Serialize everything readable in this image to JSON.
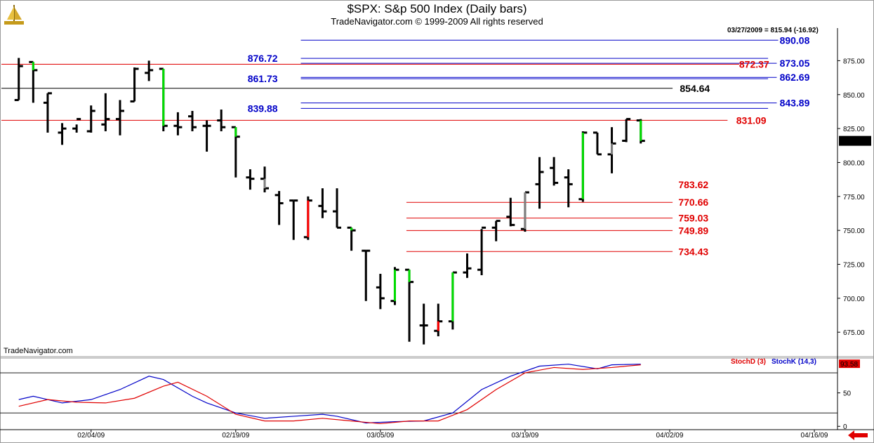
{
  "header": {
    "title": "$SPX:  S&p 500 Index  (Daily bars)",
    "subtitle": "TradeNavigator.com © 1999-2009 All rights reserved",
    "stamp": "03/27/2009 = 815.94 (-16.92)",
    "watermark": "TradeNavigator.com",
    "logo_icon": "sailboat-logo-icon",
    "scroll_icon": "scroll-left-arrow-icon"
  },
  "colors": {
    "bar": "#000000",
    "bar_gray": "#808080",
    "bar_green": "#00dd00",
    "bar_red": "#ff0000",
    "level_blue": "#0000c8",
    "level_red": "#e00000",
    "level_black": "#000000",
    "stoch_d": "#e00000",
    "stoch_k": "#0000c8"
  },
  "chart_data": {
    "type": "ohlc",
    "title": "$SPX:  S&p 500 Index  (Daily bars)",
    "price_axis": {
      "ylim": [
        657,
        899
      ],
      "ticks": [
        675,
        700,
        725,
        750,
        775,
        800,
        825,
        850,
        875
      ],
      "tick_labels": [
        "675.00",
        "700.00",
        "725.00",
        "750.00",
        "775.00",
        "800.00",
        "825.00",
        "850.00",
        "875.00"
      ],
      "last_price_label": "815.94"
    },
    "x_axis": {
      "bar_range": [
        -1.2,
        56.6
      ],
      "ticks": [
        5,
        15,
        25,
        35,
        45,
        55
      ],
      "tick_labels": [
        "02/04/09",
        "02/19/09",
        "03/05/09",
        "03/19/09",
        "04/02/09",
        "04/16/09"
      ]
    },
    "bars": [
      {
        "o": 846,
        "h": 877,
        "l": 846,
        "c": 871,
        "color": "black"
      },
      {
        "o": 874,
        "h": 874,
        "l": 844,
        "c": 868,
        "color": "green"
      },
      {
        "o": 844,
        "h": 851,
        "l": 822,
        "c": 851,
        "color": "black"
      },
      {
        "o": 822,
        "h": 829,
        "l": 813,
        "c": 825,
        "color": "black"
      },
      {
        "o": 825,
        "h": 828,
        "l": 822,
        "c": 832,
        "color": "black"
      },
      {
        "o": 823,
        "h": 842,
        "l": 822,
        "c": 838,
        "color": "black"
      },
      {
        "o": 828,
        "h": 851,
        "l": 823,
        "c": 832,
        "color": "black"
      },
      {
        "o": 832,
        "h": 846,
        "l": 820,
        "c": 838,
        "color": "black"
      },
      {
        "o": 845,
        "h": 870,
        "l": 845,
        "c": 869,
        "color": "black"
      },
      {
        "o": 866,
        "h": 875,
        "l": 860,
        "c": 868,
        "color": "black"
      },
      {
        "o": 869,
        "h": 869,
        "l": 823,
        "c": 827,
        "color": "green"
      },
      {
        "o": 827,
        "h": 837,
        "l": 820,
        "c": 826,
        "color": "black"
      },
      {
        "o": 834,
        "h": 838,
        "l": 823,
        "c": 826,
        "color": "black"
      },
      {
        "o": 827,
        "h": 831,
        "l": 808,
        "c": 827,
        "color": "black"
      },
      {
        "o": 831,
        "h": 839,
        "l": 823,
        "c": 826,
        "color": "black"
      },
      {
        "o": 826,
        "h": 826,
        "l": 789,
        "c": 819,
        "color": "green"
      },
      {
        "o": 789,
        "h": 795,
        "l": 780,
        "c": 788,
        "color": "black"
      },
      {
        "o": 788,
        "h": 797,
        "l": 778,
        "c": 781,
        "color": "gray"
      },
      {
        "o": 776,
        "h": 779,
        "l": 754,
        "c": 770,
        "color": "black"
      },
      {
        "o": 772,
        "h": 772,
        "l": 743,
        "c": 772,
        "color": "black"
      },
      {
        "o": 745,
        "h": 775,
        "l": 743,
        "c": 772,
        "color": "red"
      },
      {
        "o": 768,
        "h": 781,
        "l": 759,
        "c": 764,
        "color": "black"
      },
      {
        "o": 764,
        "h": 781,
        "l": 752,
        "c": 752,
        "color": "black"
      },
      {
        "o": 752,
        "h": 752,
        "l": 735,
        "c": 750,
        "color": "green"
      },
      {
        "o": 735,
        "h": 735,
        "l": 698,
        "c": 735,
        "color": "green"
      },
      {
        "o": 708,
        "h": 718,
        "l": 692,
        "c": 700,
        "color": "black"
      },
      {
        "o": 698,
        "h": 723,
        "l": 695,
        "c": 721,
        "color": "green"
      },
      {
        "o": 721,
        "h": 721,
        "l": 668,
        "c": 712,
        "color": "green"
      },
      {
        "o": 680,
        "h": 696,
        "l": 666,
        "c": 680,
        "color": "black"
      },
      {
        "o": 676,
        "h": 696,
        "l": 672,
        "c": 683,
        "color": "red"
      },
      {
        "o": 683,
        "h": 719,
        "l": 677,
        "c": 719,
        "color": "green"
      },
      {
        "o": 719,
        "h": 733,
        "l": 715,
        "c": 722,
        "color": "black"
      },
      {
        "o": 721,
        "h": 751,
        "l": 717,
        "c": 752,
        "color": "black"
      },
      {
        "o": 752,
        "h": 757,
        "l": 742,
        "c": 757,
        "color": "black"
      },
      {
        "o": 760,
        "h": 774,
        "l": 753,
        "c": 754,
        "color": "black"
      },
      {
        "o": 751,
        "h": 778,
        "l": 749,
        "c": 778,
        "color": "gray"
      },
      {
        "o": 784,
        "h": 804,
        "l": 766,
        "c": 793,
        "color": "black"
      },
      {
        "o": 796,
        "h": 804,
        "l": 783,
        "c": 785,
        "color": "black"
      },
      {
        "o": 789,
        "h": 795,
        "l": 767,
        "c": 784,
        "color": "black"
      },
      {
        "o": 773,
        "h": 823,
        "l": 771,
        "c": 822,
        "color": "green"
      },
      {
        "o": 822,
        "h": 822,
        "l": 806,
        "c": 806,
        "color": "black"
      },
      {
        "o": 806,
        "h": 826,
        "l": 792,
        "c": 814,
        "color": "gray"
      },
      {
        "o": 816,
        "h": 832,
        "l": 815,
        "c": 832,
        "color": "black"
      },
      {
        "o": 831,
        "h": 832,
        "l": 814,
        "c": 815.94,
        "color": "green"
      }
    ],
    "levels": [
      {
        "value": 890.08,
        "label": "890.08",
        "color": "blue",
        "line": [
          19.5,
          52.5
        ],
        "label_x": 52.6,
        "label_side": "right"
      },
      {
        "value": 876.72,
        "label": "876.72",
        "color": "blue",
        "line": [
          19.5,
          51.8
        ],
        "label_x": 17.9,
        "label_side": "left"
      },
      {
        "value": 873.05,
        "label": "873.05",
        "color": "blue",
        "line": [
          19.5,
          52.4
        ],
        "label_x": 52.6,
        "label_side": "right"
      },
      {
        "value": 872.37,
        "label": "872.37",
        "color": "red",
        "line": [
          -1.2,
          49.8
        ],
        "label_x": 49.8,
        "label_side": "right"
      },
      {
        "value": 862.69,
        "label": "862.69",
        "color": "blue",
        "line": [
          19.5,
          52.4
        ],
        "label_x": 52.6,
        "label_side": "right"
      },
      {
        "value": 861.73,
        "label": "861.73",
        "color": "blue",
        "line": [
          19.5,
          51.8
        ],
        "label_x": 17.9,
        "label_side": "left"
      },
      {
        "value": 854.64,
        "label": "854.64",
        "color": "black",
        "line": [
          -1.2,
          45.2
        ],
        "label_x": 45.7,
        "label_side": "right"
      },
      {
        "value": 843.89,
        "label": "843.89",
        "color": "blue",
        "line": [
          19.5,
          52.4
        ],
        "label_x": 52.6,
        "label_side": "right"
      },
      {
        "value": 839.88,
        "label": "839.88",
        "color": "blue",
        "line": [
          19.5,
          51.8
        ],
        "label_x": 17.9,
        "label_side": "left"
      },
      {
        "value": 831.09,
        "label": "831.09",
        "color": "red",
        "line": [
          -1.2,
          49.0
        ],
        "label_x": 49.6,
        "label_side": "right"
      },
      {
        "value": 783.62,
        "label": "783.62",
        "color": "red",
        "line": null,
        "label_x": 45.6,
        "label_side": "right"
      },
      {
        "value": 770.66,
        "label": "770.66",
        "color": "red",
        "line": [
          26.8,
          45.2
        ],
        "label_x": 45.6,
        "label_side": "right"
      },
      {
        "value": 759.03,
        "label": "759.03",
        "color": "red",
        "line": [
          26.8,
          45.2
        ],
        "label_x": 45.6,
        "label_side": "right"
      },
      {
        "value": 749.89,
        "label": "749.89",
        "color": "red",
        "line": [
          26.8,
          45.2
        ],
        "label_x": 45.6,
        "label_side": "right"
      },
      {
        "value": 734.43,
        "label": "734.43",
        "color": "red",
        "line": [
          26.8,
          45.2
        ],
        "label_x": 45.6,
        "label_side": "right"
      }
    ],
    "stochastic": {
      "legend_d": "StochD (3)",
      "legend_k": "StochK (14,3)",
      "ylim": [
        -5,
        100
      ],
      "ticks": [
        0,
        50
      ],
      "tick_labels": [
        "0",
        "50"
      ],
      "ref_lines": [
        20,
        80
      ],
      "last_label": "93.58",
      "stochD": {
        "x": [
          0,
          2,
          4,
          6,
          8,
          10,
          11,
          13,
          15,
          17,
          19,
          21,
          23,
          25,
          27,
          29,
          31,
          33,
          35,
          37,
          39,
          41,
          43
        ],
        "y": [
          30,
          40,
          36,
          35,
          42,
          60,
          66,
          45,
          18,
          8,
          8,
          12,
          8,
          4,
          8,
          8,
          25,
          55,
          80,
          88,
          85,
          88,
          92
        ]
      },
      "stochK": {
        "x": [
          0,
          1,
          3,
          5,
          7,
          9,
          10,
          12,
          13,
          15,
          17,
          19,
          21,
          22,
          24,
          26,
          28,
          30,
          32,
          34,
          36,
          38,
          40,
          41,
          43
        ],
        "y": [
          40,
          45,
          35,
          40,
          55,
          75,
          70,
          45,
          35,
          20,
          12,
          15,
          18,
          15,
          5,
          7,
          8,
          20,
          55,
          75,
          90,
          93,
          86,
          92,
          93
        ]
      }
    }
  }
}
